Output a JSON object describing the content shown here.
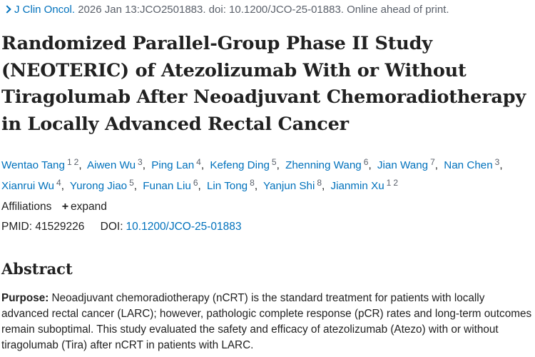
{
  "citation": {
    "journal": "J Clin Oncol.",
    "details": "2026 Jan 13:JCO2501883. doi: 10.1200/JCO-25-01883. Online ahead of print."
  },
  "title": "Randomized Parallel-Group Phase II Study (NEOTERIC) of Atezolizumab With or Without Tiragolumab After Neoadjuvant Chemoradiotherapy in Locally Advanced Rectal Cancer",
  "authors": [
    {
      "name": "Wentao Tang",
      "affs": [
        "1",
        "2"
      ]
    },
    {
      "name": "Aiwen Wu",
      "affs": [
        "3"
      ]
    },
    {
      "name": "Ping Lan",
      "affs": [
        "4"
      ]
    },
    {
      "name": "Kefeng Ding",
      "affs": [
        "5"
      ]
    },
    {
      "name": "Zhenning Wang",
      "affs": [
        "6"
      ]
    },
    {
      "name": "Jian Wang",
      "affs": [
        "7"
      ]
    },
    {
      "name": "Nan Chen",
      "affs": [
        "3"
      ]
    },
    {
      "name": "Xianrui Wu",
      "affs": [
        "4"
      ]
    },
    {
      "name": "Yurong Jiao",
      "affs": [
        "5"
      ]
    },
    {
      "name": "Funan Liu",
      "affs": [
        "6"
      ]
    },
    {
      "name": "Lin Tong",
      "affs": [
        "8"
      ]
    },
    {
      "name": "Yanjun Shi",
      "affs": [
        "8"
      ]
    },
    {
      "name": "Jianmin Xu",
      "affs": [
        "1",
        "2"
      ]
    }
  ],
  "affiliations": {
    "label": "Affiliations",
    "expand_label": "expand"
  },
  "ids": {
    "pmid_label": "PMID:",
    "pmid": "41529226",
    "doi_label": "DOI:",
    "doi": "10.1200/JCO-25-01883"
  },
  "abstract": {
    "heading": "Abstract",
    "purpose_label": "Purpose:",
    "purpose_text": "Neoadjuvant chemoradiotherapy (nCRT) is the standard treatment for patients with locally advanced rectal cancer (LARC); however, pathologic complete response (pCR) rates and long-term outcomes remain suboptimal. This study evaluated the safety and efficacy of atezolizumab (Atezo) with or without tiragolumab (Tira) after nCRT in patients with LARC."
  }
}
